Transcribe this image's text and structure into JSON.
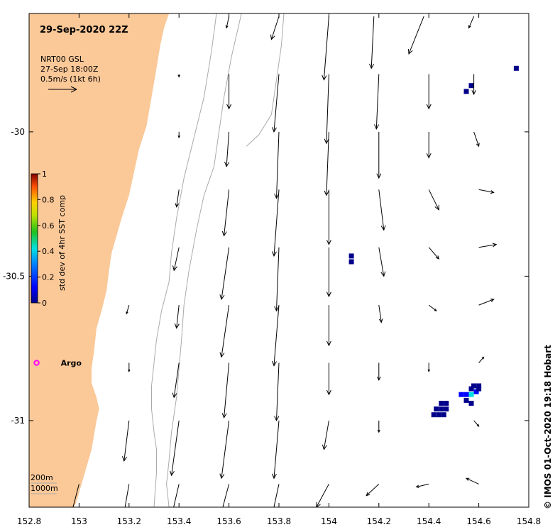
{
  "title": "29-Sep-2020 22Z",
  "product": {
    "line1": "NRT00 GSL",
    "line2": "27-Sep 18:00Z",
    "line3": "0.5m/s (1kt 6h)"
  },
  "colorbar": {
    "label": "std dev of 4hr SST comp",
    "ticks": [
      "1",
      "0.8",
      "0.6",
      "0.4",
      "0.2",
      "0"
    ],
    "tick_values": [
      1,
      0.8,
      0.6,
      0.4,
      0.2,
      0
    ]
  },
  "x_axis": {
    "ticks": [
      "152.8",
      "153",
      "153.2",
      "153.4",
      "153.6",
      "153.8",
      "154",
      "154.2",
      "154.4",
      "154.6",
      "154.8"
    ],
    "tick_values": [
      152.8,
      153.0,
      153.2,
      153.4,
      153.6,
      153.8,
      154.0,
      154.2,
      154.4,
      154.6,
      154.8
    ]
  },
  "y_axis": {
    "ticks": [
      "-30",
      "-30.5",
      "-31"
    ],
    "tick_values": [
      -30,
      -30.5,
      -31
    ]
  },
  "extent": {
    "lon": [
      152.8,
      154.8
    ],
    "lat": [
      -31.3,
      -29.59
    ]
  },
  "argo": {
    "label": "Argo",
    "lon": 152.83,
    "lat": -30.8,
    "color": "#ff00ff"
  },
  "depth_legend": {
    "contour1": "200m",
    "contour2": "1000m"
  },
  "credit": "© IMOS 01-Oct-2020 19:18 Hobart",
  "colors": {
    "land": "#fbc898",
    "contour": "#aaaaaa",
    "arrow": "#000000",
    "sst_dark": "#00008b"
  },
  "vectors": [
    {
      "lon": 153.6,
      "lat": -29.6,
      "u": -0.01,
      "v": -0.04
    },
    {
      "lon": 153.8,
      "lat": -29.6,
      "u": -0.03,
      "v": -0.08
    },
    {
      "lon": 154.0,
      "lat": -29.6,
      "u": -0.02,
      "v": -0.22
    },
    {
      "lon": 154.18,
      "lat": -29.6,
      "u": -0.01,
      "v": -0.18
    },
    {
      "lon": 154.38,
      "lat": -29.6,
      "u": -0.06,
      "v": -0.13
    },
    {
      "lon": 154.58,
      "lat": -29.6,
      "u": -0.02,
      "v": -0.04
    },
    {
      "lon": 153.4,
      "lat": -29.8,
      "u": 0.0,
      "v": -0.01
    },
    {
      "lon": 153.6,
      "lat": -29.8,
      "u": 0.0,
      "v": -0.12
    },
    {
      "lon": 153.8,
      "lat": -29.8,
      "u": -0.02,
      "v": -0.2
    },
    {
      "lon": 154.0,
      "lat": -29.8,
      "u": -0.01,
      "v": -0.24
    },
    {
      "lon": 154.2,
      "lat": -29.8,
      "u": -0.01,
      "v": -0.19
    },
    {
      "lon": 154.4,
      "lat": -29.8,
      "u": 0.0,
      "v": -0.12
    },
    {
      "lon": 154.58,
      "lat": -29.8,
      "u": 0.0,
      "v": -0.07
    },
    {
      "lon": 153.4,
      "lat": -30.0,
      "u": 0.0,
      "v": -0.02
    },
    {
      "lon": 153.6,
      "lat": -30.0,
      "u": -0.01,
      "v": -0.12
    },
    {
      "lon": 153.8,
      "lat": -30.0,
      "u": -0.01,
      "v": -0.23
    },
    {
      "lon": 154.0,
      "lat": -30.0,
      "u": -0.01,
      "v": -0.22
    },
    {
      "lon": 154.2,
      "lat": -30.0,
      "u": 0.0,
      "v": -0.16
    },
    {
      "lon": 154.4,
      "lat": -30.0,
      "u": 0.0,
      "v": -0.09
    },
    {
      "lon": 154.58,
      "lat": -30.0,
      "u": 0.02,
      "v": -0.05
    },
    {
      "lon": 153.4,
      "lat": -30.2,
      "u": -0.01,
      "v": -0.06
    },
    {
      "lon": 153.6,
      "lat": -30.2,
      "u": -0.02,
      "v": -0.16
    },
    {
      "lon": 153.8,
      "lat": -30.2,
      "u": -0.02,
      "v": -0.23
    },
    {
      "lon": 154.0,
      "lat": -30.2,
      "u": 0.0,
      "v": -0.19
    },
    {
      "lon": 154.2,
      "lat": -30.2,
      "u": 0.02,
      "v": -0.14
    },
    {
      "lon": 154.4,
      "lat": -30.2,
      "u": 0.04,
      "v": -0.07
    },
    {
      "lon": 154.6,
      "lat": -30.2,
      "u": 0.06,
      "v": -0.01
    },
    {
      "lon": 153.4,
      "lat": -30.4,
      "u": -0.02,
      "v": -0.08
    },
    {
      "lon": 153.6,
      "lat": -30.4,
      "u": -0.03,
      "v": -0.18
    },
    {
      "lon": 153.8,
      "lat": -30.4,
      "u": -0.01,
      "v": -0.22
    },
    {
      "lon": 154.0,
      "lat": -30.4,
      "u": 0.0,
      "v": -0.17
    },
    {
      "lon": 154.2,
      "lat": -30.4,
      "u": 0.02,
      "v": -0.1
    },
    {
      "lon": 154.4,
      "lat": -30.4,
      "u": 0.04,
      "v": -0.04
    },
    {
      "lon": 154.6,
      "lat": -30.4,
      "u": 0.07,
      "v": 0.01
    },
    {
      "lon": 153.4,
      "lat": -30.6,
      "u": -0.01,
      "v": -0.08
    },
    {
      "lon": 153.6,
      "lat": -30.6,
      "u": -0.03,
      "v": -0.18
    },
    {
      "lon": 153.8,
      "lat": -30.6,
      "u": -0.02,
      "v": -0.21
    },
    {
      "lon": 154.0,
      "lat": -30.6,
      "u": 0.0,
      "v": -0.14
    },
    {
      "lon": 154.2,
      "lat": -30.6,
      "u": 0.01,
      "v": -0.06
    },
    {
      "lon": 154.4,
      "lat": -30.6,
      "u": 0.03,
      "v": -0.02
    },
    {
      "lon": 154.6,
      "lat": -30.6,
      "u": 0.06,
      "v": 0.02
    },
    {
      "lon": 153.2,
      "lat": -30.6,
      "u": -0.01,
      "v": -0.03
    },
    {
      "lon": 153.2,
      "lat": -30.8,
      "u": 0.0,
      "v": -0.03
    },
    {
      "lon": 153.4,
      "lat": -30.8,
      "u": -0.02,
      "v": -0.12
    },
    {
      "lon": 153.6,
      "lat": -30.8,
      "u": -0.02,
      "v": -0.19
    },
    {
      "lon": 153.8,
      "lat": -30.8,
      "u": -0.01,
      "v": -0.2
    },
    {
      "lon": 154.0,
      "lat": -30.8,
      "u": 0.0,
      "v": -0.11
    },
    {
      "lon": 154.2,
      "lat": -30.8,
      "u": 0.0,
      "v": -0.06
    },
    {
      "lon": 154.4,
      "lat": -30.8,
      "u": 0.0,
      "v": -0.03
    },
    {
      "lon": 154.6,
      "lat": -30.8,
      "u": 0.02,
      "v": 0.02
    },
    {
      "lon": 153.2,
      "lat": -31.0,
      "u": -0.02,
      "v": -0.14
    },
    {
      "lon": 153.4,
      "lat": -31.0,
      "u": -0.03,
      "v": -0.19
    },
    {
      "lon": 153.6,
      "lat": -31.0,
      "u": -0.03,
      "v": -0.2
    },
    {
      "lon": 153.8,
      "lat": -31.0,
      "u": -0.02,
      "v": -0.2
    },
    {
      "lon": 154.0,
      "lat": -31.0,
      "u": -0.02,
      "v": -0.1
    },
    {
      "lon": 154.2,
      "lat": -31.0,
      "u": 0.0,
      "v": -0.04
    },
    {
      "lon": 154.58,
      "lat": -31.0,
      "u": 0.02,
      "v": -0.02
    },
    {
      "lon": 153.0,
      "lat": -31.22,
      "u": -0.03,
      "v": -0.1
    },
    {
      "lon": 153.2,
      "lat": -31.22,
      "u": -0.03,
      "v": -0.15
    },
    {
      "lon": 153.4,
      "lat": -31.22,
      "u": -0.04,
      "v": -0.15
    },
    {
      "lon": 153.6,
      "lat": -31.22,
      "u": -0.04,
      "v": -0.13
    },
    {
      "lon": 153.8,
      "lat": -31.22,
      "u": -0.03,
      "v": -0.12
    },
    {
      "lon": 154.0,
      "lat": -31.22,
      "u": -0.05,
      "v": -0.08
    },
    {
      "lon": 154.2,
      "lat": -31.22,
      "u": -0.05,
      "v": -0.04
    },
    {
      "lon": 154.4,
      "lat": -31.22,
      "u": -0.05,
      "v": -0.01
    },
    {
      "lon": 154.6,
      "lat": -31.22,
      "u": -0.05,
      "v": 0.02
    }
  ],
  "sst_pixels": [
    {
      "lon": 154.55,
      "lat": -29.86,
      "value": 0.02
    },
    {
      "lon": 154.57,
      "lat": -29.84,
      "value": 0.02
    },
    {
      "lon": 154.75,
      "lat": -29.78,
      "value": 0.03
    },
    {
      "lon": 154.09,
      "lat": -30.43,
      "value": 0.05
    },
    {
      "lon": 154.09,
      "lat": -30.45,
      "value": 0.05
    },
    {
      "lon": 154.55,
      "lat": -30.91,
      "value": 0.2
    },
    {
      "lon": 154.57,
      "lat": -30.91,
      "value": 0.45
    },
    {
      "lon": 154.59,
      "lat": -30.9,
      "value": 0.25
    },
    {
      "lon": 154.55,
      "lat": -30.93,
      "value": 0.05
    },
    {
      "lon": 154.57,
      "lat": -30.94,
      "value": 0.05
    },
    {
      "lon": 154.57,
      "lat": -30.89,
      "value": 0.05
    },
    {
      "lon": 154.6,
      "lat": -30.88,
      "value": 0.03
    },
    {
      "lon": 154.6,
      "lat": -30.89,
      "value": 0.03
    },
    {
      "lon": 154.53,
      "lat": -30.91,
      "value": 0.25
    },
    {
      "lon": 154.58,
      "lat": -30.88,
      "value": 0.03
    },
    {
      "lon": 154.43,
      "lat": -30.96,
      "value": 0.02
    },
    {
      "lon": 154.45,
      "lat": -30.94,
      "value": 0.02
    },
    {
      "lon": 154.45,
      "lat": -30.96,
      "value": 0.02
    },
    {
      "lon": 154.47,
      "lat": -30.94,
      "value": 0.02
    },
    {
      "lon": 154.47,
      "lat": -30.96,
      "value": 0.02
    },
    {
      "lon": 154.44,
      "lat": -30.98,
      "value": 0.02
    },
    {
      "lon": 154.46,
      "lat": -30.98,
      "value": 0.02
    },
    {
      "lon": 154.42,
      "lat": -30.98,
      "value": 0.02
    }
  ],
  "coast": [
    [
      153.36,
      -29.59
    ],
    [
      153.34,
      -29.64
    ],
    [
      153.325,
      -29.7
    ],
    [
      153.31,
      -29.78
    ],
    [
      153.29,
      -29.88
    ],
    [
      153.27,
      -29.98
    ],
    [
      153.24,
      -30.06
    ],
    [
      153.22,
      -30.14
    ],
    [
      153.2,
      -30.22
    ],
    [
      153.17,
      -30.3
    ],
    [
      153.15,
      -30.36
    ],
    [
      153.13,
      -30.42
    ],
    [
      153.12,
      -30.48
    ],
    [
      153.11,
      -30.55
    ],
    [
      153.09,
      -30.62
    ],
    [
      153.07,
      -30.68
    ],
    [
      153.06,
      -30.76
    ],
    [
      153.05,
      -30.82
    ],
    [
      153.05,
      -30.87
    ],
    [
      153.07,
      -30.92
    ],
    [
      153.08,
      -30.96
    ],
    [
      153.07,
      -31.0
    ],
    [
      153.06,
      -31.05
    ],
    [
      153.05,
      -31.1
    ],
    [
      153.03,
      -31.16
    ],
    [
      153.01,
      -31.22
    ],
    [
      152.99,
      -31.28
    ],
    [
      152.98,
      -31.3
    ]
  ],
  "contour_200": [
    [
      153.55,
      -29.59
    ],
    [
      153.53,
      -29.72
    ],
    [
      153.5,
      -29.88
    ],
    [
      153.46,
      -30.02
    ],
    [
      153.42,
      -30.16
    ],
    [
      153.39,
      -30.3
    ],
    [
      153.37,
      -30.42
    ],
    [
      153.36,
      -30.52
    ],
    [
      153.33,
      -30.62
    ],
    [
      153.31,
      -30.72
    ],
    [
      153.3,
      -30.8
    ],
    [
      153.29,
      -30.88
    ],
    [
      153.29,
      -30.96
    ],
    [
      153.3,
      -31.04
    ],
    [
      153.31,
      -31.1
    ],
    [
      153.31,
      -31.18
    ],
    [
      153.3,
      -31.3
    ]
  ],
  "contour_1000": [
    [
      153.65,
      -29.59
    ],
    [
      153.61,
      -29.74
    ],
    [
      153.58,
      -29.88
    ],
    [
      153.56,
      -30.0
    ],
    [
      153.54,
      -30.12
    ],
    [
      153.5,
      -30.22
    ],
    [
      153.47,
      -30.34
    ],
    [
      153.44,
      -30.48
    ],
    [
      153.42,
      -30.6
    ],
    [
      153.41,
      -30.72
    ],
    [
      153.4,
      -30.82
    ],
    [
      153.39,
      -30.92
    ],
    [
      153.37,
      -31.04
    ],
    [
      153.36,
      -31.14
    ],
    [
      153.35,
      -31.22
    ],
    [
      153.36,
      -31.3
    ]
  ],
  "contour_500": [
    [
      153.82,
      -29.59
    ],
    [
      153.81,
      -29.7
    ],
    [
      153.79,
      -29.82
    ],
    [
      153.77,
      -29.94
    ],
    [
      153.72,
      -30.01
    ],
    [
      153.67,
      -30.05
    ]
  ]
}
